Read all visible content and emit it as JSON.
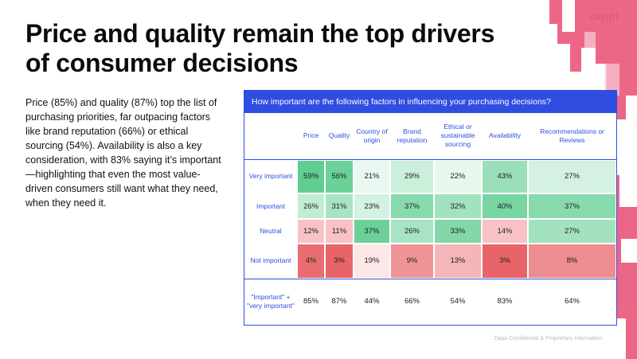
{
  "logo": "zappi",
  "title": "Price and quality remain the top drivers of consumer decisions",
  "body": "Price (85%) and quality (87%) top the list of purchasing priorities, far outpacing factors like brand reputation (66%) or ethical sourcing (54%). Availability is also a key consideration, with 83% saying it’s important—highlighting that even the most value-driven consumers still want what they need, when they need it.",
  "footer": "Zappi Confidential & Proprietary Information",
  "colors": {
    "accent_blue": "#2f4de0",
    "deco_pink": "#e8577a"
  },
  "chart_data": {
    "type": "table",
    "title": "How important are the following factors in influencing your purchasing decisions?",
    "columns": [
      "Price",
      "Quality",
      "Country of origin",
      "Brand reputation",
      "Ethical or sustainable sourcing",
      "Availability",
      "Recommendations or Reviews"
    ],
    "rows": [
      {
        "label": "Very important",
        "values": [
          59,
          56,
          21,
          29,
          22,
          43,
          27
        ]
      },
      {
        "label": "Important",
        "values": [
          26,
          31,
          23,
          37,
          32,
          40,
          37
        ]
      },
      {
        "label": "Neutral",
        "values": [
          12,
          11,
          37,
          26,
          33,
          14,
          27
        ]
      },
      {
        "label": "Not important",
        "values": [
          4,
          3,
          19,
          9,
          13,
          3,
          8
        ]
      },
      {
        "label": "\"Important\" + \"very important\"",
        "values": [
          85,
          87,
          44,
          66,
          54,
          83,
          64
        ]
      }
    ],
    "unit": "%"
  }
}
